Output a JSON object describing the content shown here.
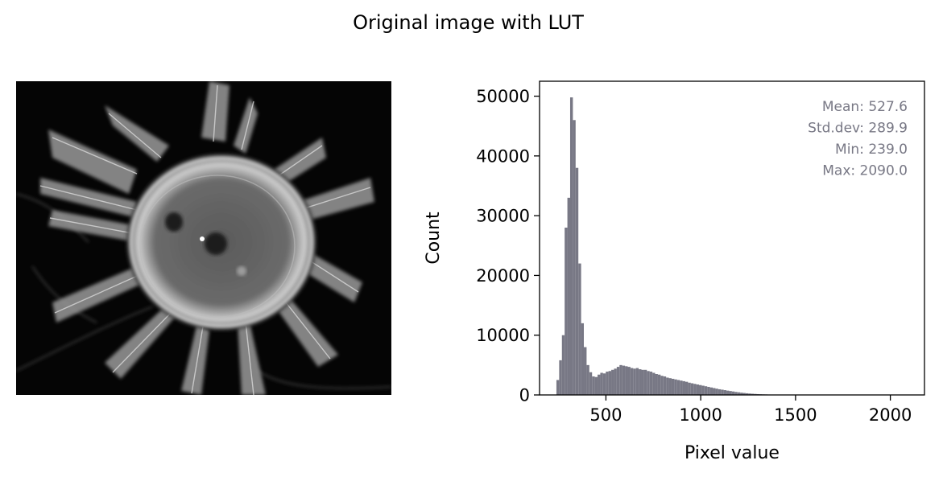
{
  "figure": {
    "title": "Original image with LUT"
  },
  "image_panel": {
    "description_icon": "grayscale-cell-micrograph"
  },
  "chart_data": {
    "type": "bar",
    "subtype": "histogram",
    "xlabel": "Pixel value",
    "ylabel": "Count",
    "xlim": [
      150,
      2180
    ],
    "ylim": [
      0,
      52500
    ],
    "xticks": [
      500,
      1000,
      1500,
      2000
    ],
    "yticks": [
      0,
      10000,
      20000,
      30000,
      40000,
      50000
    ],
    "bar_color": "#787885",
    "grid": false,
    "annotations": [
      "Mean: 527.6",
      "Std.dev: 289.9",
      "Min: 239.0",
      "Max: 2090.0"
    ],
    "annotation_color": "#787885",
    "annotation_position": "top-right",
    "bins": {
      "start": 239,
      "width": 14.46,
      "counts": [
        2500,
        5800,
        10000,
        28000,
        33000,
        49800,
        46000,
        38000,
        22000,
        12000,
        8000,
        5000,
        3800,
        3100,
        3000,
        3400,
        3700,
        3600,
        3900,
        4000,
        4200,
        4400,
        4700,
        5000,
        4900,
        4800,
        4700,
        4500,
        4400,
        4500,
        4300,
        4200,
        4200,
        4000,
        3900,
        3700,
        3500,
        3400,
        3200,
        3100,
        2900,
        2800,
        2700,
        2600,
        2500,
        2400,
        2300,
        2200,
        2050,
        1950,
        1850,
        1750,
        1650,
        1550,
        1450,
        1350,
        1250,
        1150,
        1050,
        950,
        880,
        800,
        720,
        650,
        580,
        500,
        440,
        380,
        330,
        280,
        240,
        200,
        170,
        140,
        120,
        100,
        85,
        70,
        60,
        50,
        45,
        40,
        35,
        30,
        28,
        25,
        22,
        20,
        18,
        16,
        14,
        12,
        11,
        10,
        9,
        8,
        7,
        6,
        5,
        5,
        4,
        4,
        3,
        3,
        3,
        2,
        2,
        2,
        2,
        1,
        1,
        1,
        1,
        1,
        1,
        1,
        1,
        1,
        1,
        1,
        1,
        1,
        1,
        1,
        1,
        1,
        1,
        1
      ]
    }
  }
}
